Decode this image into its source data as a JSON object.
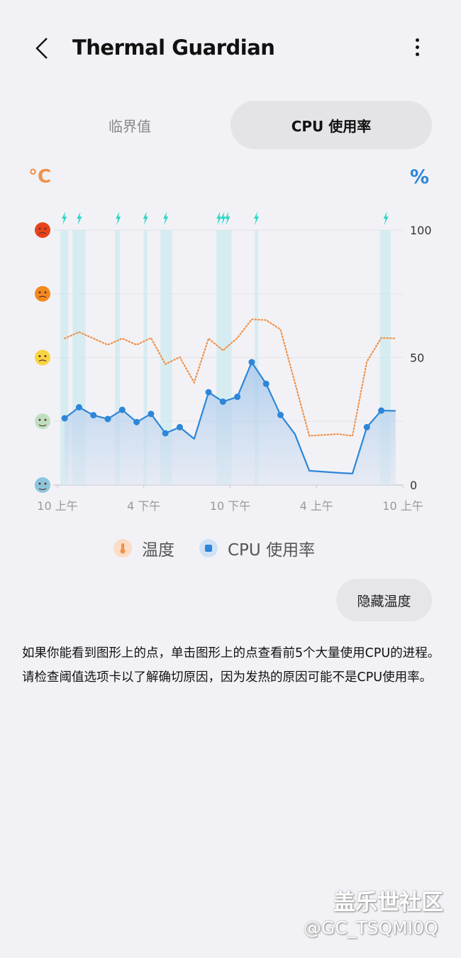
{
  "header": {
    "title": "Thermal Guardian",
    "back_icon": "chevron-left-icon",
    "menu_icon": "more-vertical-icon"
  },
  "tabs": [
    {
      "label": "临界值",
      "selected": false
    },
    {
      "label": "CPU 使用率",
      "selected": true
    }
  ],
  "units": {
    "left": "°C",
    "right": "%"
  },
  "legend": [
    {
      "label": "温度",
      "icon": "thermometer-icon",
      "color": "#f0914a"
    },
    {
      "label": "CPU 使用率",
      "icon": "cpu-chip-icon",
      "color": "#2d86d8"
    }
  ],
  "hide_button": "隐藏温度",
  "description": [
    "如果你能看到图形上的点，单击图形上的点查看前5个大量使用CPU的进程。",
    "请检查阈值选项卡以了解确切原因，因为发热的原因可能不是CPU使用率。"
  ],
  "watermark": {
    "line1": "盖乐世社区",
    "line2": "@GC_TSQMI0Q"
  },
  "chart_data": {
    "type": "line",
    "x_unit": "hours from 10 上午",
    "x_range": [
      0,
      24
    ],
    "x_ticks": [
      {
        "h": 0,
        "label": "10 上午"
      },
      {
        "h": 6,
        "label": "4 下午"
      },
      {
        "h": 12,
        "label": "10 下午"
      },
      {
        "h": 18,
        "label": "4 上午"
      },
      {
        "h": 24,
        "label": "10 上午"
      }
    ],
    "y_right": {
      "range": [
        0,
        100
      ],
      "ticks": [
        "0",
        "50",
        "100"
      ]
    },
    "y_left_levels": [
      "very-hot-face",
      "hot-face",
      "warm-face",
      "normal-face",
      "cool-face"
    ],
    "grid": true,
    "series": [
      {
        "name": "CPU 使用率",
        "color": "#2d86d8",
        "style": "solid-area",
        "points": [
          [
            0.5,
            26.2,
            true
          ],
          [
            1.5,
            30.5,
            true
          ],
          [
            2.5,
            27.4,
            true
          ],
          [
            3.5,
            25.9,
            true
          ],
          [
            4.5,
            29.5,
            true
          ],
          [
            5.5,
            24.7,
            true
          ],
          [
            6.5,
            27.9,
            true
          ],
          [
            7.5,
            20.3,
            true
          ],
          [
            8.5,
            22.7,
            true
          ],
          [
            9.5,
            18.1,
            false
          ],
          [
            10.5,
            36.4,
            true
          ],
          [
            11.5,
            32.7,
            true
          ],
          [
            12.5,
            34.6,
            true
          ],
          [
            13.5,
            48.2,
            true
          ],
          [
            14.5,
            39.7,
            true
          ],
          [
            15.5,
            27.5,
            true
          ],
          [
            16.5,
            20,
            false
          ],
          [
            17.5,
            5.6,
            false
          ],
          [
            19.5,
            4.8,
            false
          ],
          [
            20.5,
            4.5,
            false
          ],
          [
            21.5,
            22.7,
            true
          ],
          [
            22.5,
            29.2,
            true
          ],
          [
            23.5,
            29.1,
            false
          ]
        ]
      },
      {
        "name": "温度",
        "color": "#f0914a",
        "style": "dotted",
        "points": [
          [
            0.5,
            57.5
          ],
          [
            1.5,
            60
          ],
          [
            3.5,
            55
          ],
          [
            4.5,
            57.5
          ],
          [
            5.5,
            55
          ],
          [
            6.5,
            57.7
          ],
          [
            7.5,
            47.4
          ],
          [
            8.5,
            50.2
          ],
          [
            9.5,
            40.2
          ],
          [
            10.5,
            57.5
          ],
          [
            11.5,
            52.8
          ],
          [
            12.5,
            57.7
          ],
          [
            13.5,
            65
          ],
          [
            14.5,
            64.7
          ],
          [
            15.5,
            61
          ],
          [
            17.5,
            19.3
          ],
          [
            19.5,
            20
          ],
          [
            20.5,
            19.3
          ],
          [
            21.5,
            48.4
          ],
          [
            22.5,
            57.7
          ],
          [
            23.5,
            57.5
          ]
        ]
      }
    ],
    "charging_bands": [
      [
        0.2,
        0.75
      ],
      [
        1.05,
        1.95
      ],
      [
        4.0,
        4.35
      ],
      [
        5.98,
        6.25
      ],
      [
        7.15,
        7.97
      ],
      [
        11.05,
        11.58
      ],
      [
        11.58,
        12.1
      ],
      [
        13.7,
        13.95
      ],
      [
        22.4,
        23.15
      ]
    ],
    "charging_marks": [
      0.45,
      1.5,
      4.2,
      6.1,
      7.5,
      11.2,
      11.5,
      11.8,
      13.8,
      22.8
    ],
    "band_color": "#cfeaf0",
    "mark_color": "#2fd6c8"
  }
}
